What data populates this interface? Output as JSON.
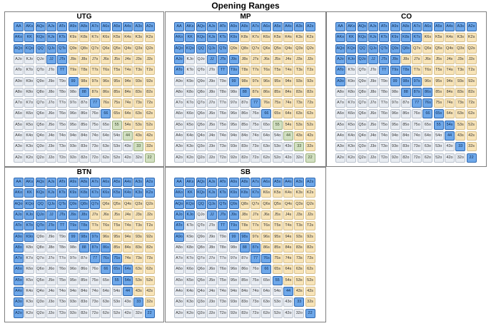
{
  "title": "Opening Ranges",
  "ranks": [
    "A",
    "K",
    "Q",
    "J",
    "T",
    "9",
    "8",
    "7",
    "6",
    "5",
    "4",
    "3",
    "2"
  ],
  "colors": {
    "raise": "#6ea8ea",
    "offsuit": "#f8e4b8",
    "pair_or_suited": "#e8ecf2",
    "mixed": "#d2e0c2"
  },
  "panels": [
    {
      "name": "UTG",
      "raise": [
        "AA",
        "AKs",
        "AQs",
        "AJs",
        "ATs",
        "A9s",
        "A8s",
        "A7s",
        "A6s",
        "A5s",
        "A4s",
        "A3s",
        "A2s",
        "AKo",
        "KK",
        "KQs",
        "KJs",
        "KTs",
        "AQo",
        "KQo",
        "QQ",
        "QJs",
        "QTs",
        "JJ",
        "JTs",
        "TT",
        "99",
        "88",
        "77",
        "66"
      ],
      "mixed": [
        "55",
        "44",
        "33",
        "22"
      ]
    },
    {
      "name": "MP",
      "raise": [
        "AA",
        "AKs",
        "AQs",
        "AJs",
        "ATs",
        "A9s",
        "A8s",
        "A7s",
        "A6s",
        "A5s",
        "A4s",
        "A3s",
        "A2s",
        "AKo",
        "KK",
        "KQs",
        "KJs",
        "KTs",
        "K9s",
        "AQo",
        "KQo",
        "QQ",
        "QJs",
        "QTs",
        "AJo",
        "JJ",
        "JTs",
        "J9s",
        "ATo",
        "TT",
        "T9s",
        "99",
        "88",
        "77",
        "66"
      ],
      "mixed": [
        "55",
        "44",
        "33",
        "22"
      ]
    },
    {
      "name": "CO",
      "raise": [
        "AA",
        "AKs",
        "AQs",
        "AJs",
        "ATs",
        "A9s",
        "A8s",
        "A7s",
        "A6s",
        "A5s",
        "A4s",
        "A3s",
        "A2s",
        "AKo",
        "KK",
        "KQs",
        "KJs",
        "KTs",
        "K9s",
        "K8s",
        "K7s",
        "AQo",
        "KQo",
        "QQ",
        "QJs",
        "QTs",
        "Q9s",
        "Q8s",
        "AJo",
        "KJo",
        "QJo",
        "JJ",
        "JTs",
        "J9s",
        "ATo",
        "TT",
        "T9s",
        "T8s",
        "A9o",
        "99",
        "98s",
        "97s",
        "88",
        "87s",
        "86s",
        "77",
        "76s",
        "66",
        "65s",
        "55",
        "54s",
        "44",
        "33",
        "22"
      ],
      "mixed": []
    },
    {
      "name": "BTN",
      "raise": [
        "AA",
        "AKs",
        "AQs",
        "AJs",
        "ATs",
        "A9s",
        "A8s",
        "A7s",
        "A6s",
        "A5s",
        "A4s",
        "A3s",
        "A2s",
        "AKo",
        "KK",
        "KQs",
        "KJs",
        "KTs",
        "K9s",
        "K8s",
        "K7s",
        "K6s",
        "K5s",
        "K4s",
        "K3s",
        "K2s",
        "AQo",
        "KQo",
        "QQ",
        "QJs",
        "QTs",
        "Q9s",
        "Q8s",
        "Q7s",
        "AJo",
        "KJo",
        "QJo",
        "JJ",
        "JTs",
        "J9s",
        "J8s",
        "ATo",
        "KTo",
        "QTo",
        "JTo",
        "TT",
        "T9s",
        "T8s",
        "A9o",
        "K9o",
        "99",
        "98s",
        "97s",
        "A8o",
        "88",
        "87s",
        "86s",
        "A7o",
        "77",
        "76s",
        "75s",
        "A6o",
        "66",
        "65s",
        "64s",
        "A5o",
        "55",
        "54s",
        "A4o",
        "44",
        "A3o",
        "33",
        "A2o",
        "22"
      ],
      "mixed": []
    },
    {
      "name": "SB",
      "raise": [
        "AA",
        "AKs",
        "AQs",
        "AJs",
        "ATs",
        "A9s",
        "A8s",
        "A7s",
        "A6s",
        "A5s",
        "A4s",
        "A3s",
        "A2s",
        "AKo",
        "KK",
        "KQs",
        "KJs",
        "KTs",
        "K9s",
        "K8s",
        "K7s",
        "AQo",
        "KQo",
        "QQ",
        "QJs",
        "QTs",
        "Q9s",
        "AJo",
        "KJo",
        "JJ",
        "JTs",
        "J9s",
        "ATo",
        "TT",
        "T9s",
        "A9o",
        "99",
        "98s",
        "88",
        "87s",
        "77",
        "76s",
        "66",
        "55",
        "44",
        "33",
        "22"
      ],
      "mixed": []
    }
  ]
}
